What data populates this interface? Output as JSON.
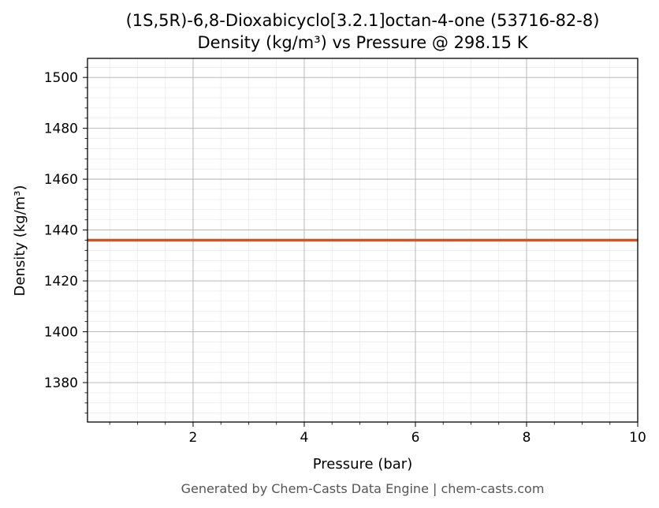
{
  "chart_data": {
    "type": "line",
    "title_line1": "(1S,5R)-6,8-Dioxabicyclo[3.2.1]octan-4-one (53716-82-8)",
    "title_line2": "Density (kg/m³) vs Pressure @ 298.15 K",
    "xlabel": "Pressure (bar)",
    "ylabel": "Density (kg/m³)",
    "xlim": [
      0.1,
      10
    ],
    "ylim": [
      1364.5,
      1507.5
    ],
    "x_ticks": [
      2,
      4,
      6,
      8,
      10
    ],
    "y_ticks": [
      1380,
      1400,
      1420,
      1440,
      1460,
      1480,
      1500
    ],
    "grid": true,
    "series": [
      {
        "color": "#cc5529",
        "x": [
          0.1,
          10
        ],
        "y": [
          1436,
          1436
        ]
      }
    ]
  },
  "footer": "Generated by Chem-Casts Data Engine | chem-casts.com"
}
